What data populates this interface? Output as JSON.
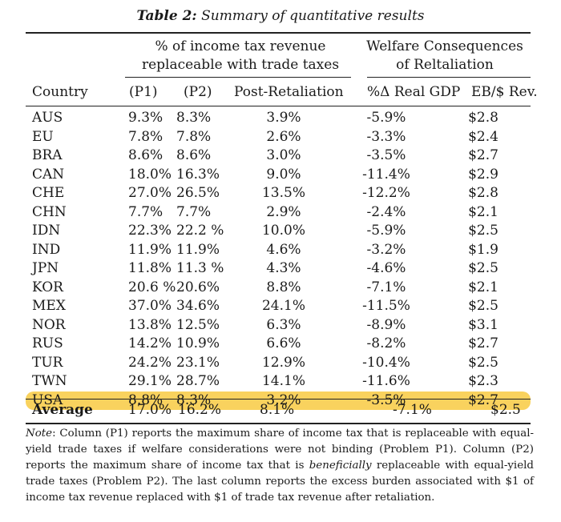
{
  "caption": {
    "label": "Table 2:",
    "title": "Summary of quantitative results"
  },
  "group_headers": {
    "income_tax": [
      "% of income tax revenue",
      "replaceable with trade taxes"
    ],
    "welfare": [
      "Welfare Consequences",
      "of Reltaliation"
    ]
  },
  "columns": {
    "country": "Country",
    "p1": "(P1)",
    "p2": "(P2)",
    "post": "Post-Retaliation",
    "gdp": "%Δ Real GDP",
    "eb": "EB/$ Rev."
  },
  "rows": [
    [
      "AUS",
      "9.3%",
      "8.3%",
      "3.9%",
      "-5.9%",
      "$2.8"
    ],
    [
      "EU",
      "7.8%",
      "7.8%",
      "2.6%",
      "-3.3%",
      "$2.4"
    ],
    [
      "BRA",
      "8.6%",
      "8.6%",
      "3.0%",
      "-3.5%",
      "$2.7"
    ],
    [
      "CAN",
      "18.0%",
      "16.3%",
      "9.0%",
      "-11.4%",
      "$2.9"
    ],
    [
      "CHE",
      "27.0%",
      "26.5%",
      "13.5%",
      "-12.2%",
      "$2.8"
    ],
    [
      "CHN",
      "7.7%",
      "7.7%",
      "2.9%",
      "-2.4%",
      "$2.1"
    ],
    [
      "IDN",
      "22.3%",
      "22.2 %",
      "10.0%",
      "-5.9%",
      "$2.5"
    ],
    [
      "IND",
      "11.9%",
      "11.9%",
      "4.6%",
      "-3.2%",
      "$1.9"
    ],
    [
      "JPN",
      "11.8%",
      "11.3 %",
      "4.3%",
      "-4.6%",
      "$2.5"
    ],
    [
      "KOR",
      "20.6 %",
      "20.6%",
      "8.8%",
      "-7.1%",
      "$2.1"
    ],
    [
      "MEX",
      "37.0%",
      "34.6%",
      "24.1%",
      "-11.5%",
      "$2.5"
    ],
    [
      "NOR",
      "13.8%",
      "12.5%",
      "6.3%",
      "-8.9%",
      "$3.1"
    ],
    [
      "RUS",
      "14.2%",
      "10.9%",
      "6.6%",
      "-8.2%",
      "$2.7"
    ],
    [
      "TUR",
      "24.2%",
      "23.1%",
      "12.9%",
      "-10.4%",
      "$2.5"
    ],
    [
      "TWN",
      "29.1%",
      "28.7%",
      "14.1%",
      "-11.6%",
      "$2.3"
    ],
    [
      "USA",
      "8.8%",
      "8.3%",
      "3.2%",
      "-3.5%",
      "$2.7"
    ]
  ],
  "highlight_country": "USA",
  "highlight_color": "#f9d25e",
  "average": [
    "Average",
    "17.0%",
    "16.2%",
    "8.1%",
    "-7.1%",
    "$2.5"
  ],
  "note": {
    "label": "Note",
    "part1": ": Column (P1) reports the maximum share of income tax that is replaceable with equal-yield trade taxes if welfare considerations were not binding (Problem P1). Column (P2) reports the maximum share of income tax that is ",
    "emph": "beneficially",
    "part2": " replaceable with equal-yield trade taxes (Problem P2). The last column reports the excess burden associated with $1 of income tax revenue replaced with $1 of trade tax revenue after retaliation."
  }
}
